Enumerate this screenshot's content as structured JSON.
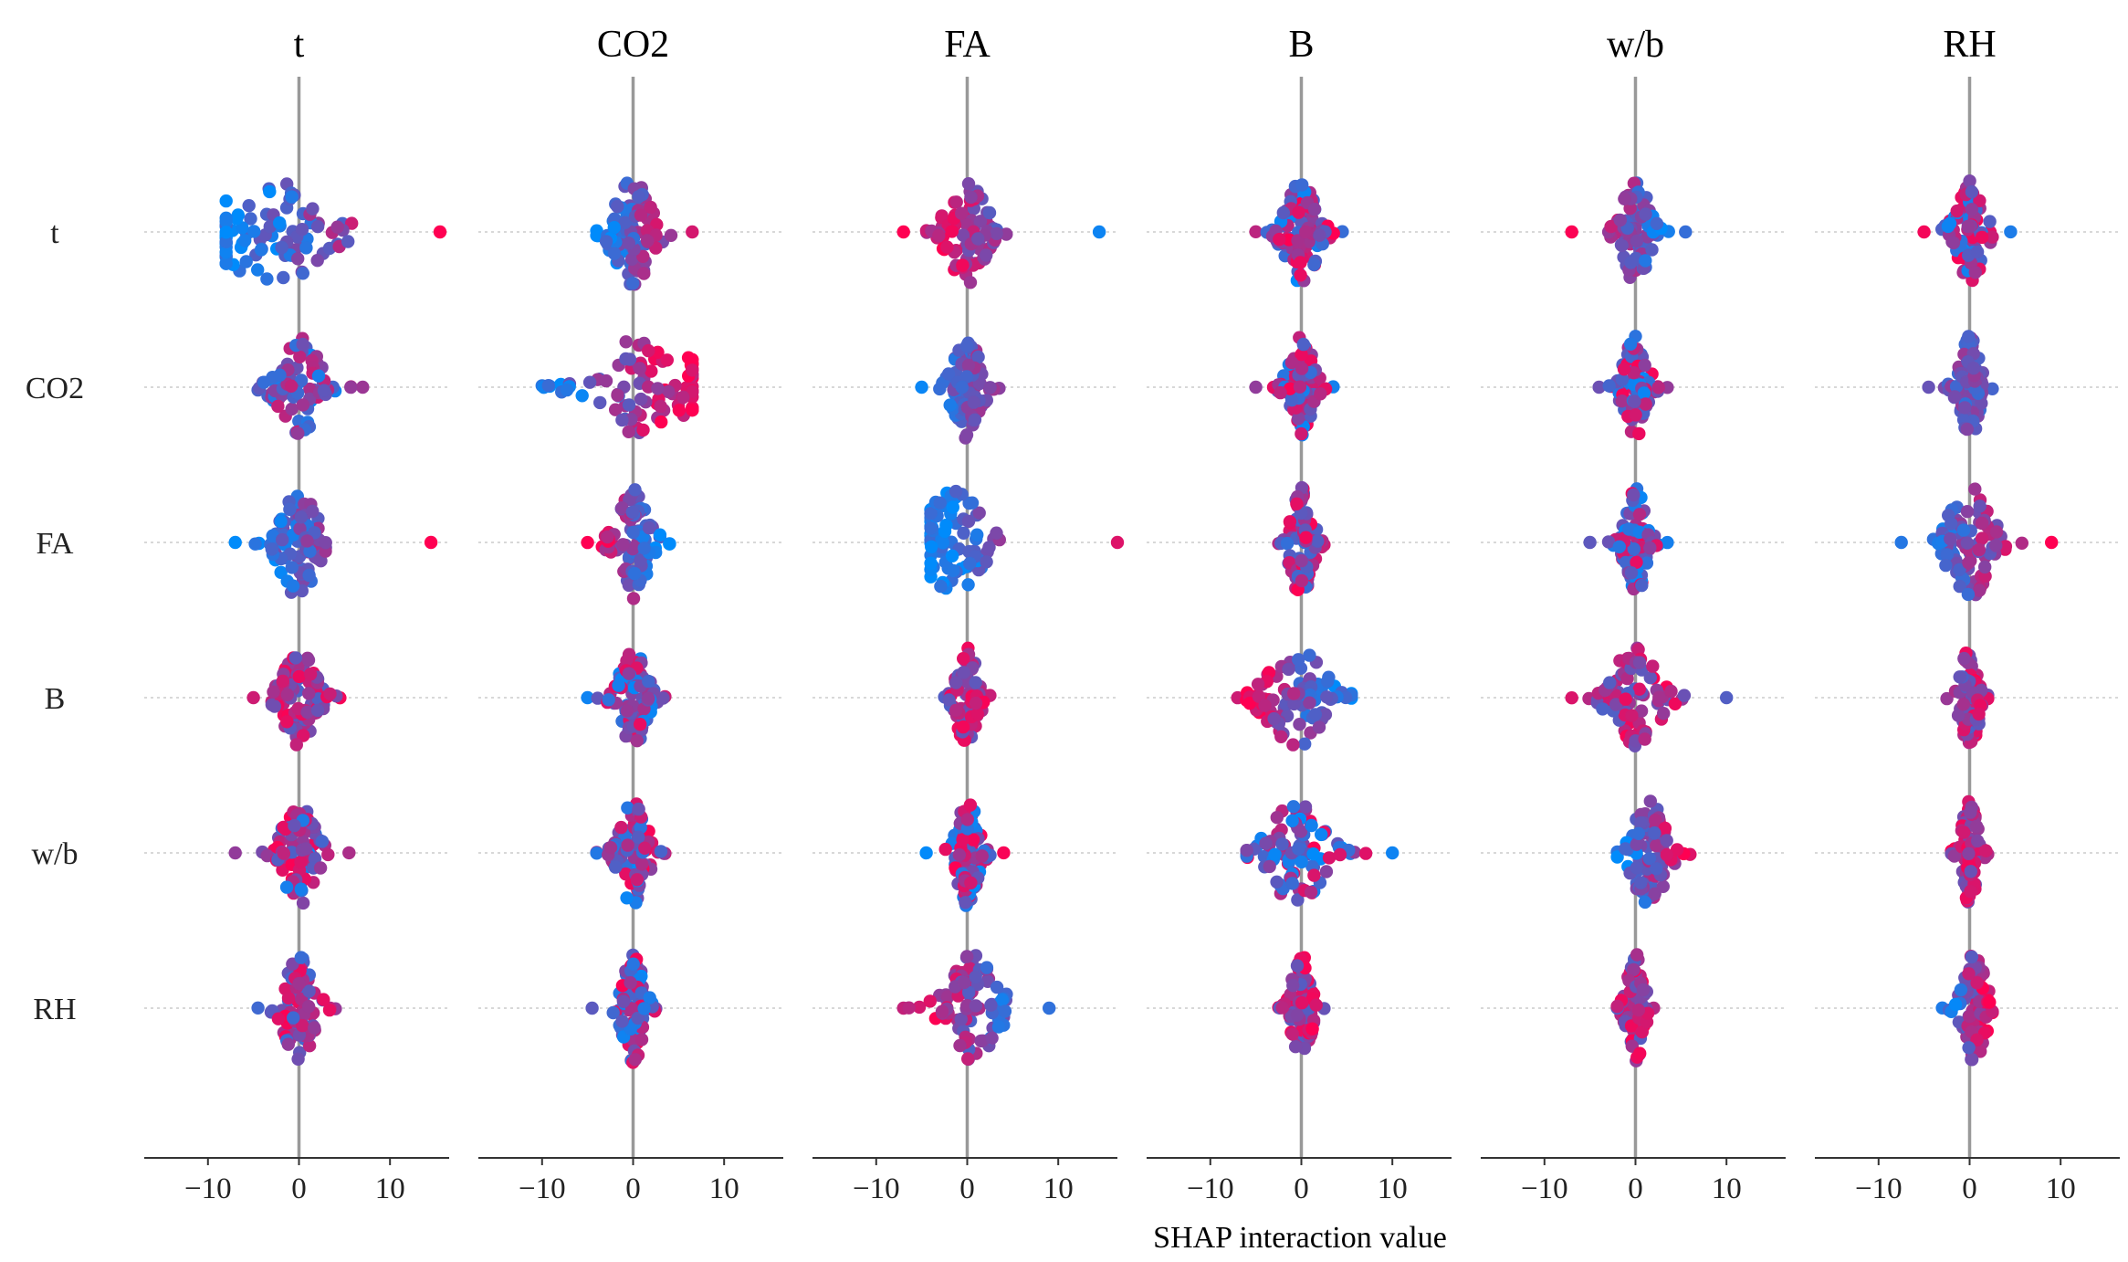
{
  "chart_data": {
    "type": "scatter",
    "subtype": "SHAP interaction beeswarm matrix",
    "features": [
      "t",
      "CO2",
      "FA",
      "B",
      "w/b",
      "RH"
    ],
    "column_titles": [
      "t",
      "CO2",
      "FA",
      "B",
      "w/b",
      "RH"
    ],
    "row_labels": [
      "t",
      "CO2",
      "FA",
      "B",
      "w/b",
      "RH"
    ],
    "xlabel": "SHAP interaction value",
    "xlim": [
      -17,
      16.5
    ],
    "xticks": [
      -10,
      0,
      10
    ],
    "xtick_labels": [
      "−10",
      "0",
      "10"
    ],
    "colors": {
      "low": "#008bfb",
      "high": "#ff0052",
      "zero_line": "#999999",
      "axis": "#333333",
      "grid": "#cccccc"
    },
    "points_per_cell": 90,
    "cells": [
      [
        {
          "min": -8,
          "max": 15.5,
          "center": -2.5,
          "spread": 5.5,
          "height": 0.33,
          "trend": 1,
          "cmin": 0,
          "cmax": 1
        },
        {
          "min": -4,
          "max": 6.5,
          "center": 0,
          "spread": 1.8,
          "height": 0.33,
          "trend": 1,
          "cmin": 0,
          "cmax": 1
        },
        {
          "min": -7,
          "max": 14.5,
          "center": 0,
          "spread": 1.8,
          "height": 0.33,
          "trend": -1,
          "cmin": 0,
          "cmax": 1
        },
        {
          "min": -5,
          "max": 4.5,
          "center": 0,
          "spread": 1.5,
          "height": 0.33,
          "trend": 0,
          "cmin": 0,
          "cmax": 1
        },
        {
          "min": -7,
          "max": 5.5,
          "center": 0,
          "spread": 1.3,
          "height": 0.33,
          "trend": -1,
          "cmin": 0,
          "cmax": 1
        },
        {
          "min": -5,
          "max": 4.5,
          "center": 0,
          "spread": 1.3,
          "height": 0.33,
          "trend": 0,
          "cmin": 0,
          "cmax": 1
        }
      ],
      [
        {
          "min": -4.5,
          "max": 7,
          "center": 0,
          "spread": 1.9,
          "height": 0.32,
          "trend": 0,
          "cmin": 0,
          "cmax": 0.8
        },
        {
          "min": -10,
          "max": 6.5,
          "center": 1.5,
          "spread": 4.5,
          "height": 0.32,
          "trend": 1,
          "cmin": 0,
          "cmax": 1
        },
        {
          "min": -5,
          "max": 3.5,
          "center": 0,
          "spread": 1.3,
          "height": 0.32,
          "trend": 1,
          "cmin": 0,
          "cmax": 0.7
        },
        {
          "min": -5,
          "max": 3.5,
          "center": 0,
          "spread": 1.2,
          "height": 0.32,
          "trend": 0,
          "cmin": 0,
          "cmax": 1
        },
        {
          "min": -4,
          "max": 3.5,
          "center": 0,
          "spread": 1.1,
          "height": 0.32,
          "trend": 0,
          "cmin": 0,
          "cmax": 1
        },
        {
          "min": -4.5,
          "max": 2.5,
          "center": 0,
          "spread": 1.0,
          "height": 0.32,
          "trend": 0,
          "cmin": 0.2,
          "cmax": 0.6
        }
      ],
      [
        {
          "min": -7,
          "max": 14.5,
          "center": 0,
          "spread": 1.8,
          "height": 0.35,
          "trend": 1,
          "cmin": 0,
          "cmax": 1
        },
        {
          "min": -5,
          "max": 4,
          "center": 0,
          "spread": 1.5,
          "height": 0.35,
          "trend": -1,
          "cmin": 0,
          "cmax": 1
        },
        {
          "min": -4,
          "max": 16.5,
          "center": -1.5,
          "spread": 2.6,
          "height": 0.35,
          "trend": 1,
          "cmin": 0,
          "cmax": 1
        },
        {
          "min": -2.5,
          "max": 2.5,
          "center": 0,
          "spread": 1.0,
          "height": 0.35,
          "trend": 0,
          "cmin": 0.2,
          "cmax": 1
        },
        {
          "min": -5,
          "max": 3.5,
          "center": 0,
          "spread": 1.0,
          "height": 0.35,
          "trend": 0,
          "cmin": 0,
          "cmax": 1
        },
        {
          "min": -7.5,
          "max": 9,
          "center": 0,
          "spread": 2.0,
          "height": 0.35,
          "trend": 1,
          "cmin": 0,
          "cmax": 1
        }
      ],
      [
        {
          "min": -5,
          "max": 4.5,
          "center": 0,
          "spread": 1.6,
          "height": 0.31,
          "trend": 0,
          "cmin": 0.3,
          "cmax": 1
        },
        {
          "min": -5,
          "max": 3.5,
          "center": 0,
          "spread": 1.3,
          "height": 0.31,
          "trend": 0,
          "cmin": 0,
          "cmax": 1
        },
        {
          "min": -2.5,
          "max": 2.5,
          "center": 0,
          "spread": 1.0,
          "height": 0.31,
          "trend": 0,
          "cmin": 0.3,
          "cmax": 1
        },
        {
          "min": -7,
          "max": 5.5,
          "center": -0.5,
          "spread": 2.7,
          "height": 0.31,
          "trend": -1,
          "cmin": 0,
          "cmax": 1
        },
        {
          "min": -7,
          "max": 10,
          "center": 0,
          "spread": 2.2,
          "height": 0.31,
          "trend": 0,
          "cmin": 0.3,
          "cmax": 1
        },
        {
          "min": -2.5,
          "max": 2,
          "center": 0,
          "spread": 0.9,
          "height": 0.31,
          "trend": 0,
          "cmin": 0.3,
          "cmax": 1
        }
      ],
      [
        {
          "min": -7,
          "max": 5.5,
          "center": 0,
          "spread": 1.5,
          "height": 0.33,
          "trend": 0,
          "cmin": 0,
          "cmax": 1
        },
        {
          "min": -4,
          "max": 3.5,
          "center": 0,
          "spread": 1.3,
          "height": 0.33,
          "trend": 0,
          "cmin": 0,
          "cmax": 1
        },
        {
          "min": -4.5,
          "max": 4,
          "center": 0,
          "spread": 1.1,
          "height": 0.33,
          "trend": 0,
          "cmin": 0,
          "cmax": 1
        },
        {
          "min": -6,
          "max": 10,
          "center": -0.5,
          "spread": 2.5,
          "height": 0.33,
          "trend": 0,
          "cmin": 0,
          "cmax": 1
        },
        {
          "min": -2,
          "max": 6,
          "center": 1.5,
          "spread": 1.7,
          "height": 0.33,
          "trend": 1,
          "cmin": 0,
          "cmax": 1
        },
        {
          "min": -2,
          "max": 2,
          "center": 0,
          "spread": 0.8,
          "height": 0.33,
          "trend": 0,
          "cmin": 0.4,
          "cmax": 1
        }
      ],
      [
        {
          "min": -4.5,
          "max": 4,
          "center": 0,
          "spread": 1.4,
          "height": 0.34,
          "trend": 0,
          "cmin": 0.2,
          "cmax": 1
        },
        {
          "min": -4.5,
          "max": 2.5,
          "center": 0,
          "spread": 1.0,
          "height": 0.34,
          "trend": 0,
          "cmin": 0,
          "cmax": 1
        },
        {
          "min": -7,
          "max": 9,
          "center": 0.5,
          "spread": 2.3,
          "height": 0.34,
          "trend": -1,
          "cmin": 0,
          "cmax": 1
        },
        {
          "min": -2.5,
          "max": 2.5,
          "center": 0,
          "spread": 0.9,
          "height": 0.34,
          "trend": 0,
          "cmin": 0.3,
          "cmax": 1
        },
        {
          "min": -2,
          "max": 2,
          "center": 0,
          "spread": 0.8,
          "height": 0.34,
          "trend": 0,
          "cmin": 0.3,
          "cmax": 1
        },
        {
          "min": -3,
          "max": 2.5,
          "center": 0.5,
          "spread": 1.1,
          "height": 0.34,
          "trend": 1,
          "cmin": 0,
          "cmax": 1
        }
      ]
    ]
  }
}
